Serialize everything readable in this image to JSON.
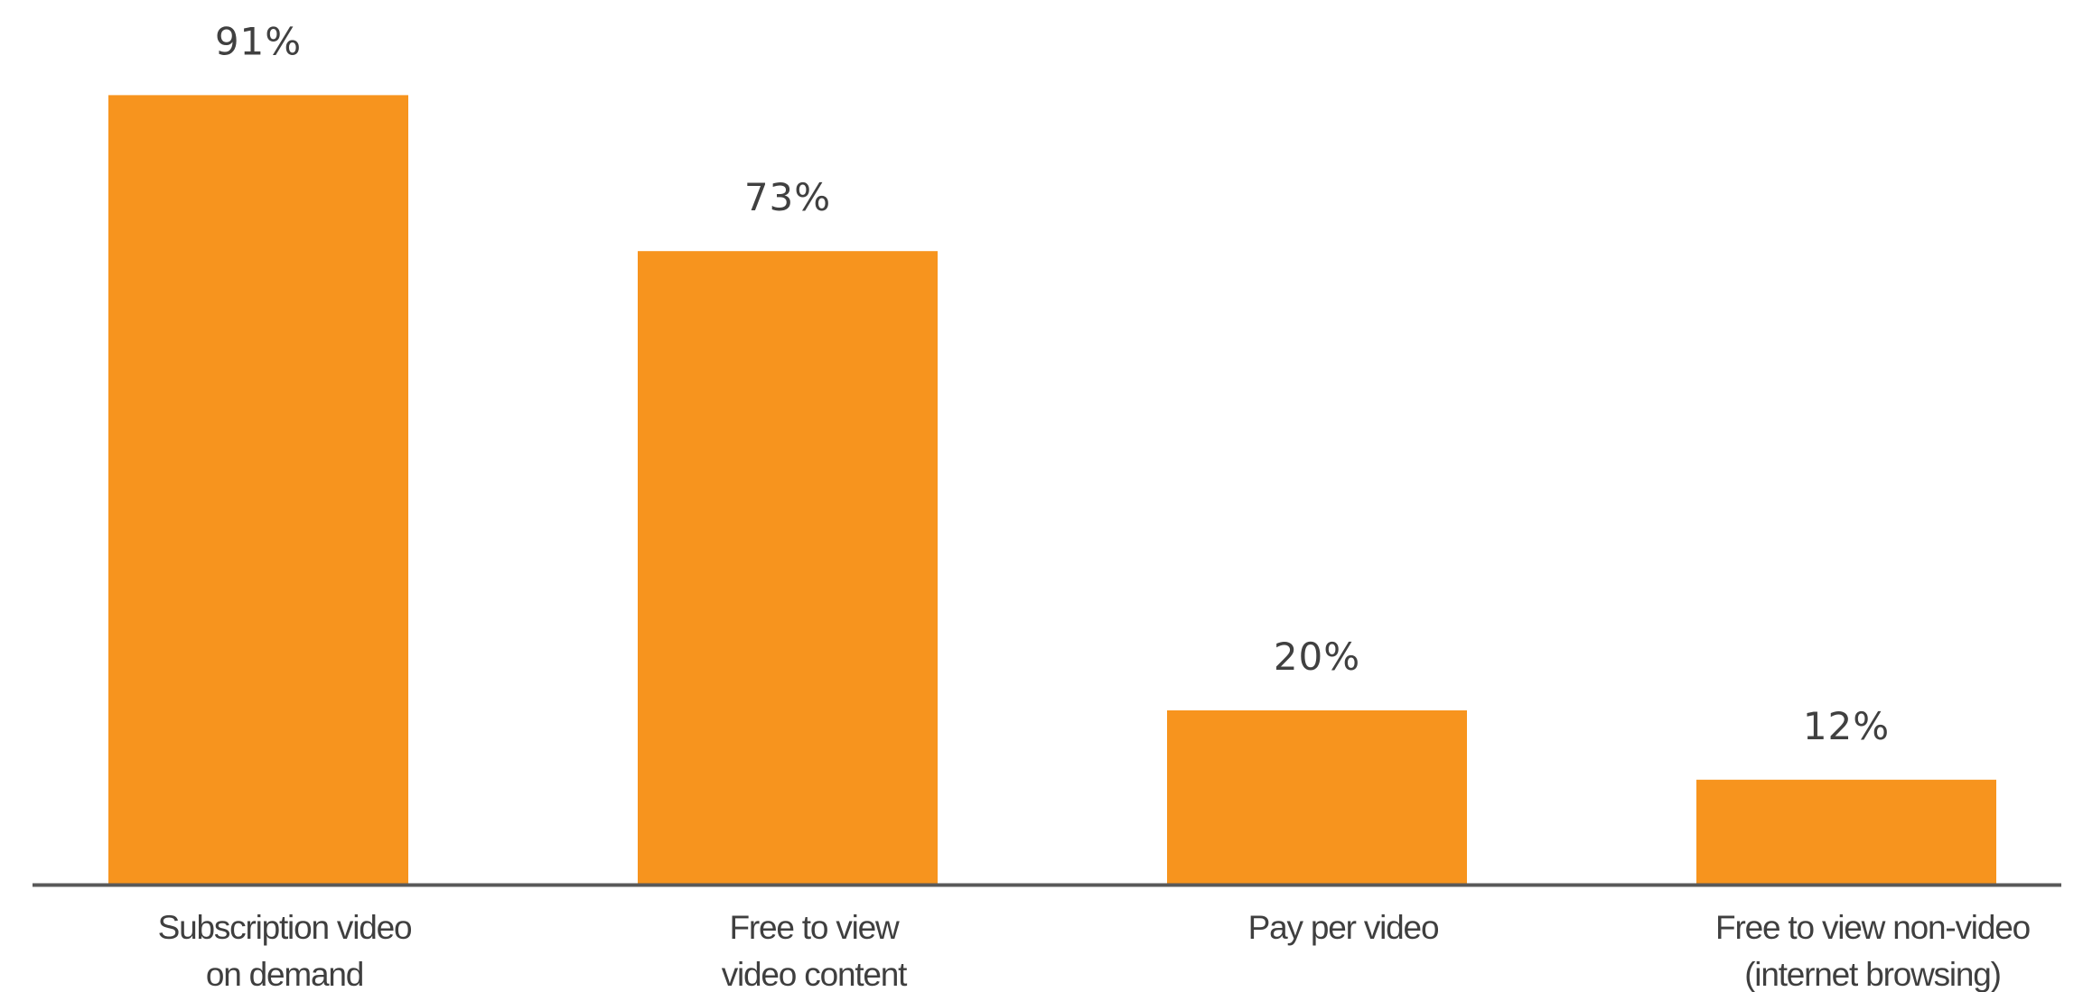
{
  "chart_data": {
    "type": "bar",
    "title": "",
    "xlabel": "",
    "ylabel": "",
    "categories": [
      [
        "Subscription video",
        "on demand"
      ],
      [
        "Free to view",
        "video content"
      ],
      [
        "Pay per video"
      ],
      [
        "Free to view non-video",
        "(internet browsing)"
      ]
    ],
    "values": [
      91,
      73,
      20,
      12
    ],
    "value_labels": [
      "91%",
      "73%",
      "20%",
      "12%"
    ],
    "ylim": [
      0,
      100
    ],
    "grid": false,
    "legend": "none",
    "bar_color": "#F7941E",
    "axis_color": "#595959"
  }
}
